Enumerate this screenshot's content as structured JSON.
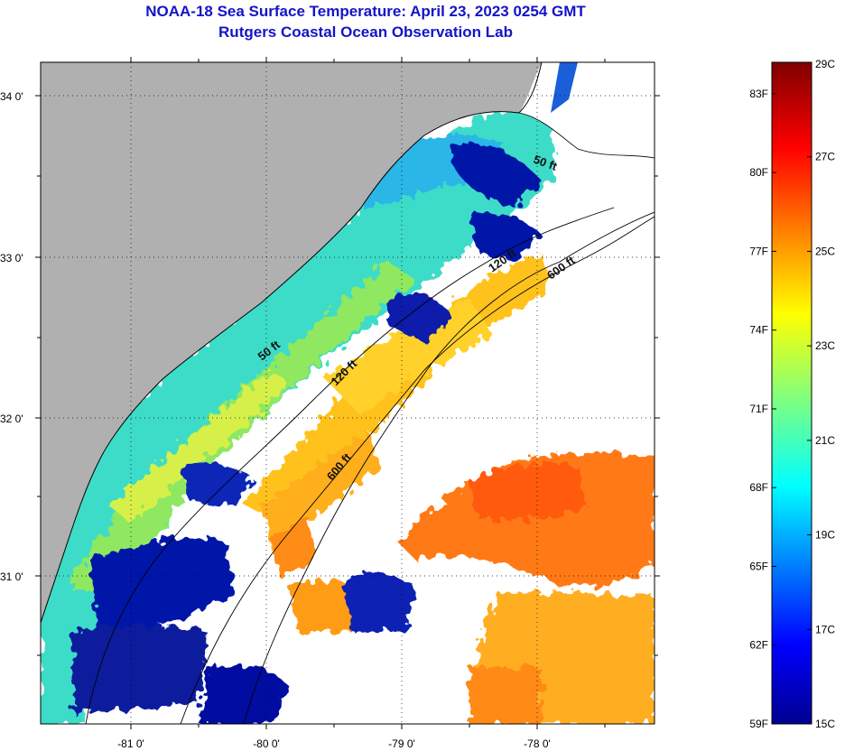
{
  "title": {
    "line1": "NOAA-18 Sea Surface Temperature:  April 23, 2023 0254 GMT",
    "line2": "Rutgers Coastal Ocean Observation Lab"
  },
  "map": {
    "lat_labels": [
      "34 0'",
      "33 0'",
      "32 0'",
      "31 0'"
    ],
    "lon_labels": [
      "-81 0'",
      "-80 0'",
      "-79 0'",
      "-78 0'"
    ],
    "contours": [
      "50 ft",
      "120 ft",
      "600 ft",
      "50 ft",
      "120 ft",
      "600 ft"
    ],
    "colors": {
      "land": "#b0b0b0",
      "cloud": "#ffffff"
    }
  },
  "colorbar": {
    "f_labels": [
      "83F",
      "80F",
      "77F",
      "74F",
      "71F",
      "68F",
      "65F",
      "62F",
      "59F"
    ],
    "c_labels": [
      "29C",
      "27C",
      "25C",
      "23C",
      "21C",
      "19C",
      "17C",
      "15C"
    ],
    "range_c": [
      15,
      29
    ],
    "range_f": [
      59,
      84.2
    ]
  }
}
